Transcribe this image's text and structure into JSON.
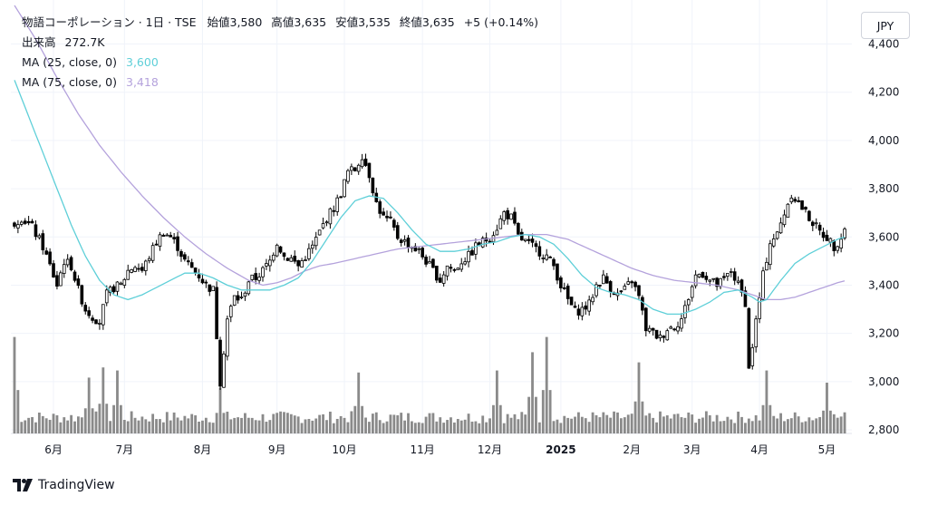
{
  "header": {
    "title": "物語コーポレーション · 1日 · TSE",
    "open_label": "始値",
    "open": "3,580",
    "high_label": "高値",
    "high": "3,635",
    "low_label": "安値",
    "low": "3,535",
    "close_label": "終値",
    "close": "3,635",
    "change": "+5 (+0.14%)",
    "volume_label": "出来高",
    "volume": "272.7K",
    "ma25_label": "MA (25, close, 0)",
    "ma25_value": "3,600",
    "ma75_label": "MA (75, close, 0)",
    "ma75_value": "3,418"
  },
  "currency_button": "JPY",
  "brand": "TradingView",
  "colors": {
    "up": "#ffffff",
    "down": "#000000",
    "ma25": "#5ecfd8",
    "ma75": "#b4a2dc",
    "volume": "#8a8a8a",
    "grid": "#f0f3fa"
  },
  "chart_data": {
    "type": "candlestick",
    "y_ticks": [
      "2,800",
      "3,000",
      "3,200",
      "3,400",
      "3,600",
      "3,800",
      "4,000",
      "4,200",
      "4,400"
    ],
    "y_tick_values": [
      2800,
      3000,
      3200,
      3400,
      3600,
      3800,
      4000,
      4200,
      4400
    ],
    "ylim": [
      2800,
      4560
    ],
    "x_ticks": [
      {
        "label": "6月",
        "bold": false,
        "day": 11
      },
      {
        "label": "7月",
        "bold": false,
        "day": 31
      },
      {
        "label": "8月",
        "bold": false,
        "day": 53
      },
      {
        "label": "9月",
        "bold": false,
        "day": 74
      },
      {
        "label": "10月",
        "bold": false,
        "day": 93
      },
      {
        "label": "11月",
        "bold": false,
        "day": 115
      },
      {
        "label": "12月",
        "bold": false,
        "day": 134
      },
      {
        "label": "2025",
        "bold": true,
        "day": 154
      },
      {
        "label": "2月",
        "bold": false,
        "day": 174
      },
      {
        "label": "3月",
        "bold": false,
        "day": 191
      },
      {
        "label": "4月",
        "bold": false,
        "day": 210
      },
      {
        "label": "5月",
        "bold": false,
        "day": 229
      }
    ],
    "price_anchors": [
      [
        0,
        3660
      ],
      [
        2,
        3680
      ],
      [
        5,
        3640
      ],
      [
        8,
        3560
      ],
      [
        10,
        3480
      ],
      [
        12,
        3400
      ],
      [
        14,
        3500
      ],
      [
        16,
        3480
      ],
      [
        18,
        3380
      ],
      [
        20,
        3300
      ],
      [
        22,
        3270
      ],
      [
        24,
        3250
      ],
      [
        26,
        3360
      ],
      [
        28,
        3390
      ],
      [
        30,
        3400
      ],
      [
        32,
        3460
      ],
      [
        34,
        3480
      ],
      [
        36,
        3460
      ],
      [
        38,
        3520
      ],
      [
        40,
        3580
      ],
      [
        42,
        3620
      ],
      [
        44,
        3600
      ],
      [
        46,
        3560
      ],
      [
        48,
        3500
      ],
      [
        50,
        3470
      ],
      [
        52,
        3440
      ],
      [
        54,
        3400
      ],
      [
        56,
        3380
      ],
      [
        58,
        3000
      ],
      [
        60,
        3260
      ],
      [
        62,
        3350
      ],
      [
        64,
        3340
      ],
      [
        66,
        3420
      ],
      [
        68,
        3430
      ],
      [
        70,
        3460
      ],
      [
        72,
        3500
      ],
      [
        74,
        3580
      ],
      [
        76,
        3520
      ],
      [
        78,
        3510
      ],
      [
        80,
        3480
      ],
      [
        82,
        3520
      ],
      [
        84,
        3560
      ],
      [
        86,
        3620
      ],
      [
        88,
        3680
      ],
      [
        90,
        3720
      ],
      [
        92,
        3780
      ],
      [
        94,
        3870
      ],
      [
        96,
        3880
      ],
      [
        98,
        3940
      ],
      [
        100,
        3860
      ],
      [
        102,
        3740
      ],
      [
        104,
        3680
      ],
      [
        106,
        3660
      ],
      [
        108,
        3600
      ],
      [
        110,
        3580
      ],
      [
        112,
        3560
      ],
      [
        114,
        3540
      ],
      [
        116,
        3500
      ],
      [
        118,
        3460
      ],
      [
        120,
        3420
      ],
      [
        122,
        3480
      ],
      [
        124,
        3460
      ],
      [
        126,
        3500
      ],
      [
        128,
        3520
      ],
      [
        130,
        3560
      ],
      [
        132,
        3580
      ],
      [
        134,
        3600
      ],
      [
        136,
        3640
      ],
      [
        138,
        3700
      ],
      [
        140,
        3680
      ],
      [
        142,
        3600
      ],
      [
        144,
        3580
      ],
      [
        146,
        3560
      ],
      [
        148,
        3540
      ],
      [
        150,
        3520
      ],
      [
        152,
        3480
      ],
      [
        154,
        3400
      ],
      [
        156,
        3340
      ],
      [
        158,
        3290
      ],
      [
        160,
        3300
      ],
      [
        162,
        3320
      ],
      [
        164,
        3400
      ],
      [
        166,
        3430
      ],
      [
        168,
        3390
      ],
      [
        170,
        3360
      ],
      [
        172,
        3380
      ],
      [
        174,
        3420
      ],
      [
        176,
        3350
      ],
      [
        178,
        3220
      ],
      [
        180,
        3200
      ],
      [
        182,
        3180
      ],
      [
        184,
        3220
      ],
      [
        186,
        3230
      ],
      [
        188,
        3260
      ],
      [
        190,
        3350
      ],
      [
        192,
        3440
      ],
      [
        194,
        3450
      ],
      [
        196,
        3420
      ],
      [
        198,
        3400
      ],
      [
        200,
        3420
      ],
      [
        202,
        3460
      ],
      [
        204,
        3400
      ],
      [
        206,
        3330
      ],
      [
        207,
        3050
      ],
      [
        209,
        3250
      ],
      [
        211,
        3440
      ],
      [
        213,
        3580
      ],
      [
        215,
        3610
      ],
      [
        217,
        3700
      ],
      [
        219,
        3780
      ],
      [
        221,
        3740
      ],
      [
        223,
        3700
      ],
      [
        225,
        3660
      ],
      [
        227,
        3620
      ],
      [
        229,
        3600
      ],
      [
        231,
        3560
      ],
      [
        233,
        3600
      ],
      [
        234,
        3635
      ]
    ],
    "ma25_anchors": [
      [
        0,
        4250
      ],
      [
        4,
        4100
      ],
      [
        8,
        3950
      ],
      [
        12,
        3800
      ],
      [
        16,
        3650
      ],
      [
        20,
        3520
      ],
      [
        24,
        3420
      ],
      [
        28,
        3360
      ],
      [
        32,
        3340
      ],
      [
        36,
        3360
      ],
      [
        40,
        3390
      ],
      [
        44,
        3420
      ],
      [
        48,
        3450
      ],
      [
        52,
        3450
      ],
      [
        56,
        3430
      ],
      [
        60,
        3400
      ],
      [
        64,
        3380
      ],
      [
        68,
        3380
      ],
      [
        72,
        3380
      ],
      [
        76,
        3400
      ],
      [
        80,
        3430
      ],
      [
        84,
        3500
      ],
      [
        88,
        3590
      ],
      [
        92,
        3680
      ],
      [
        96,
        3750
      ],
      [
        100,
        3770
      ],
      [
        104,
        3760
      ],
      [
        108,
        3700
      ],
      [
        112,
        3630
      ],
      [
        116,
        3570
      ],
      [
        120,
        3540
      ],
      [
        124,
        3540
      ],
      [
        128,
        3550
      ],
      [
        132,
        3570
      ],
      [
        136,
        3580
      ],
      [
        140,
        3600
      ],
      [
        144,
        3610
      ],
      [
        148,
        3600
      ],
      [
        152,
        3570
      ],
      [
        156,
        3510
      ],
      [
        160,
        3440
      ],
      [
        164,
        3390
      ],
      [
        168,
        3370
      ],
      [
        172,
        3360
      ],
      [
        176,
        3340
      ],
      [
        180,
        3300
      ],
      [
        184,
        3280
      ],
      [
        188,
        3280
      ],
      [
        192,
        3300
      ],
      [
        196,
        3330
      ],
      [
        200,
        3370
      ],
      [
        204,
        3380
      ],
      [
        208,
        3350
      ],
      [
        210,
        3330
      ],
      [
        212,
        3340
      ],
      [
        216,
        3420
      ],
      [
        220,
        3490
      ],
      [
        224,
        3530
      ],
      [
        228,
        3560
      ],
      [
        232,
        3590
      ],
      [
        234,
        3600
      ]
    ],
    "ma75_anchors": [
      [
        0,
        4560
      ],
      [
        6,
        4420
      ],
      [
        12,
        4260
      ],
      [
        18,
        4110
      ],
      [
        24,
        3980
      ],
      [
        30,
        3870
      ],
      [
        36,
        3770
      ],
      [
        42,
        3680
      ],
      [
        48,
        3600
      ],
      [
        54,
        3530
      ],
      [
        60,
        3470
      ],
      [
        66,
        3420
      ],
      [
        70,
        3400
      ],
      [
        74,
        3410
      ],
      [
        78,
        3430
      ],
      [
        82,
        3460
      ],
      [
        86,
        3480
      ],
      [
        90,
        3490
      ],
      [
        96,
        3510
      ],
      [
        102,
        3530
      ],
      [
        108,
        3550
      ],
      [
        114,
        3560
      ],
      [
        120,
        3570
      ],
      [
        126,
        3580
      ],
      [
        132,
        3590
      ],
      [
        138,
        3600
      ],
      [
        144,
        3610
      ],
      [
        150,
        3610
      ],
      [
        156,
        3590
      ],
      [
        162,
        3550
      ],
      [
        168,
        3510
      ],
      [
        174,
        3470
      ],
      [
        180,
        3440
      ],
      [
        186,
        3420
      ],
      [
        192,
        3410
      ],
      [
        198,
        3400
      ],
      [
        204,
        3380
      ],
      [
        208,
        3360
      ],
      [
        212,
        3340
      ],
      [
        216,
        3340
      ],
      [
        220,
        3350
      ],
      [
        224,
        3370
      ],
      [
        228,
        3390
      ],
      [
        232,
        3410
      ],
      [
        234,
        3418
      ]
    ],
    "volume_spikes": [
      [
        0,
        0.95
      ],
      [
        21,
        0.55
      ],
      [
        25,
        0.65
      ],
      [
        29,
        0.62
      ],
      [
        58,
        0.45
      ],
      [
        97,
        0.6
      ],
      [
        136,
        0.62
      ],
      [
        146,
        0.8
      ],
      [
        150,
        0.95
      ],
      [
        176,
        0.7
      ],
      [
        212,
        0.62
      ],
      [
        229,
        0.5
      ]
    ],
    "num_days": 235
  }
}
